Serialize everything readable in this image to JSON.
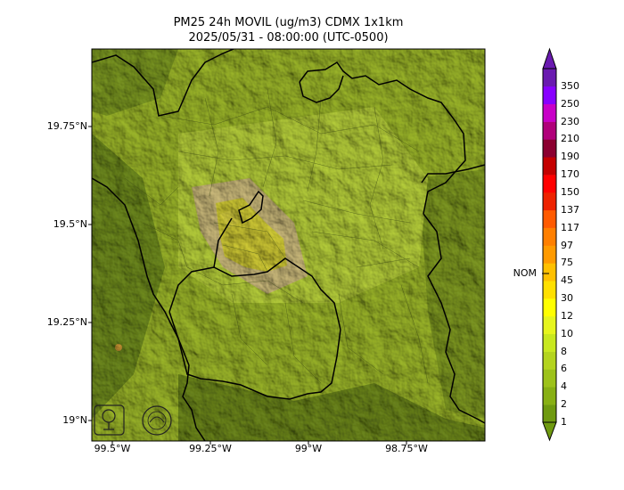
{
  "title_line1": "PM25 24h MOVIL (ug/m3) CDMX 1x1km",
  "title_line2": "2025/05/31 - 08:00:00 (UTC-0500)",
  "y_ticks": [
    "19.75°N",
    "19.5°N",
    "19.25°N",
    "19°N"
  ],
  "x_ticks": [
    "99.5°W",
    "99.25°W",
    "99°W",
    "98.75°W"
  ],
  "colorbar": {
    "marker_label": "NOM",
    "levels": [
      "1",
      "2",
      "4",
      "6",
      "8",
      "10",
      "12",
      "30",
      "45",
      "75",
      "97",
      "117",
      "137",
      "150",
      "170",
      "190",
      "210",
      "230",
      "250",
      "350"
    ],
    "colors": [
      "#6f9a10",
      "#88b014",
      "#9dc21a",
      "#b4d41e",
      "#c8e81f",
      "#e6f51d",
      "#ffff00",
      "#ffe000",
      "#ffc000",
      "#ff9a00",
      "#ff7f00",
      "#ff5a00",
      "#ee2200",
      "#ff0000",
      "#c40000",
      "#8b0030",
      "#b0007a",
      "#c800c8",
      "#8800ff",
      "#6a1ab0"
    ]
  },
  "logos": [
    "SEDEMA",
    "CALIDAD DEL AIRE"
  ]
}
